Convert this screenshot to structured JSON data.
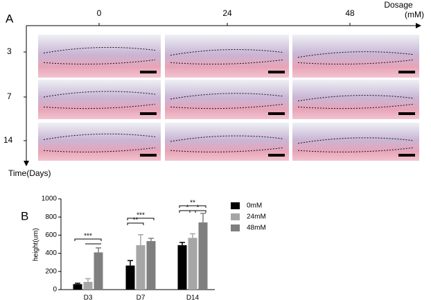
{
  "panel_a": {
    "label": "A",
    "columns": [
      "0",
      "24",
      "48"
    ],
    "column_title": "Dosage",
    "column_unit": "(mM)",
    "rows": [
      "3",
      "7",
      "14"
    ],
    "row_title": "Time(Days)"
  },
  "chart_data": {
    "type": "bar",
    "label": "B",
    "y_label": "height(um)",
    "categories": [
      "D3",
      "D7",
      "D14"
    ],
    "series": [
      {
        "name": "0mM",
        "color": "#000000",
        "values": [
          60,
          265,
          490
        ],
        "errors": [
          10,
          55,
          30
        ]
      },
      {
        "name": "24mM",
        "color": "#a6a6a6",
        "values": [
          85,
          490,
          570
        ],
        "errors": [
          35,
          115,
          45
        ]
      },
      {
        "name": "48mM",
        "color": "#7f7f7f",
        "values": [
          410,
          535,
          740
        ],
        "errors": [
          50,
          30,
          100
        ]
      }
    ],
    "ylim": [
      0,
      1000
    ],
    "yticks": [
      0,
      200,
      400,
      600,
      800,
      1000
    ],
    "annotations": [
      "***",
      "**",
      "***",
      "**",
      "*",
      "*"
    ]
  }
}
